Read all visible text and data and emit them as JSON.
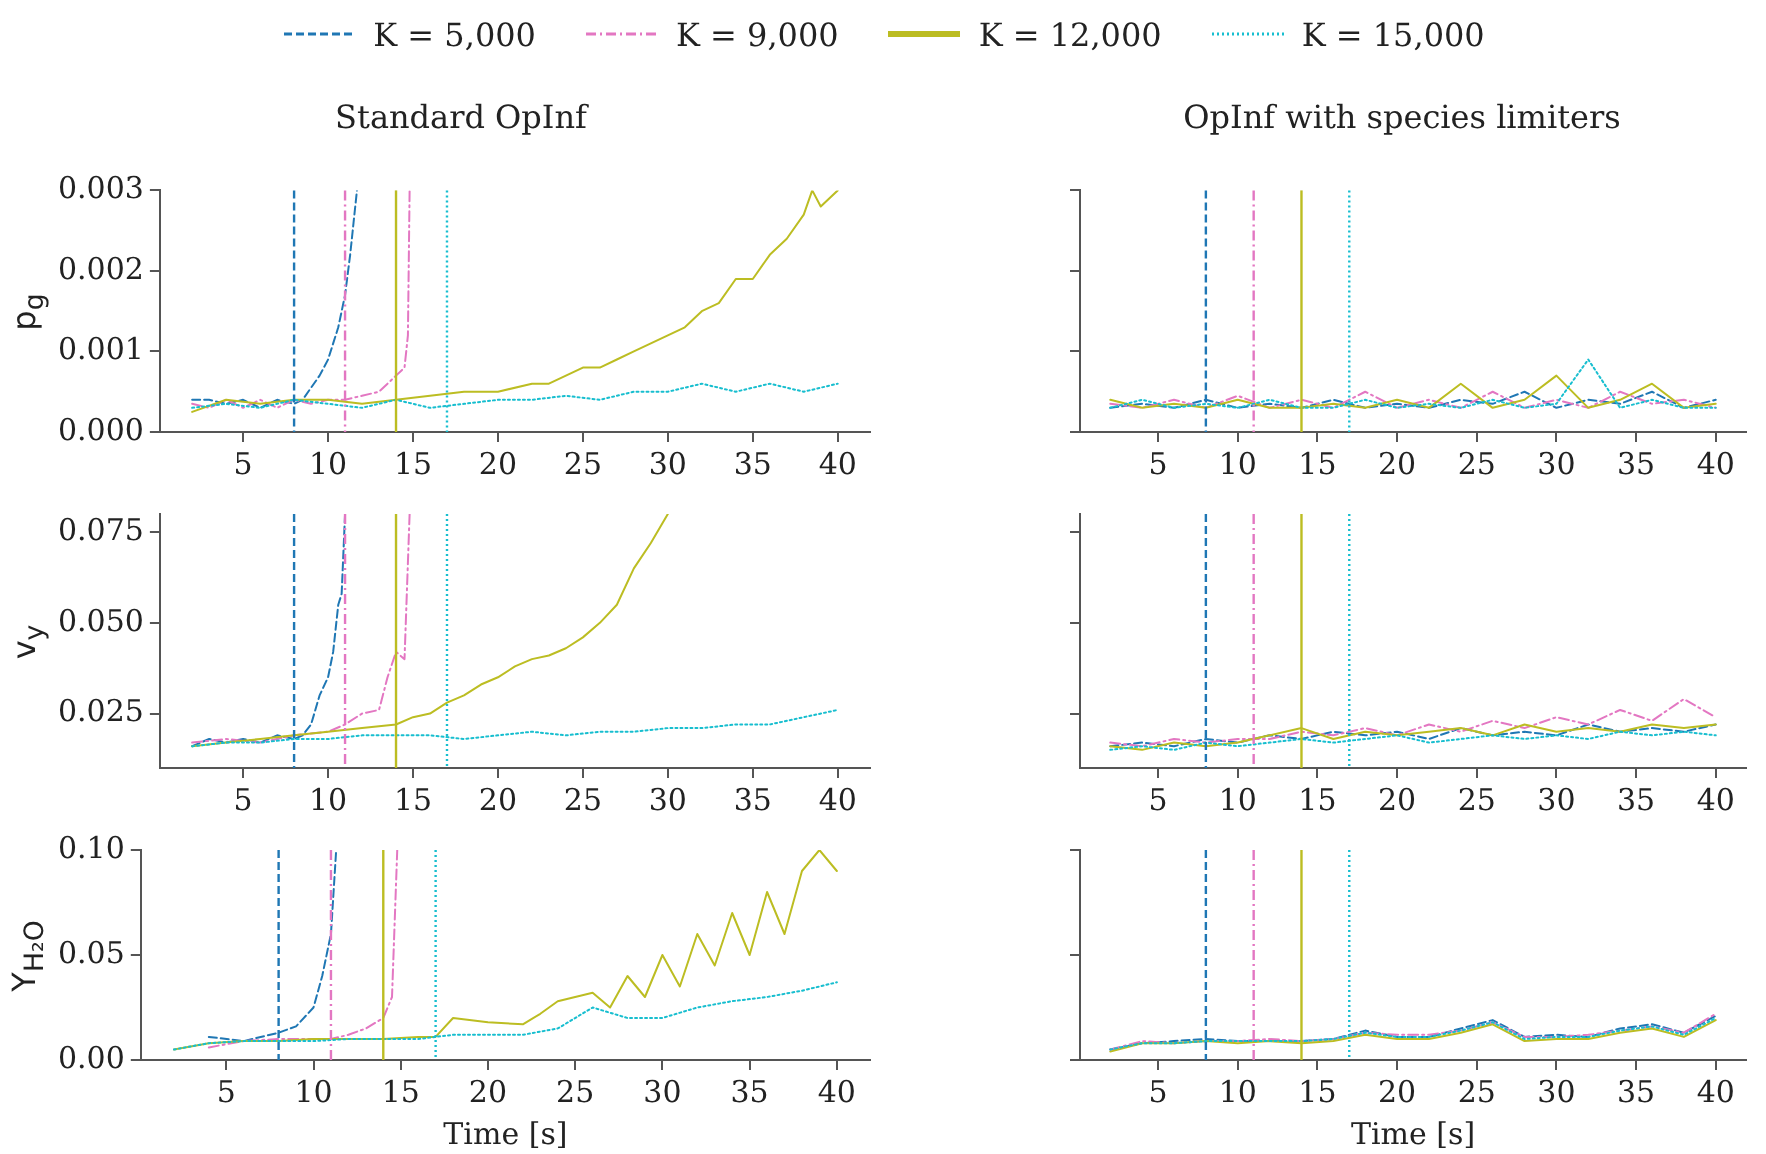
{
  "chart_data": [
    {
      "type": "line",
      "title": "Standard OpInf",
      "ylabel": "p$_{g}$",
      "legend": "top",
      "marker": "none",
      "xlim": [
        0.1,
        41.9
      ],
      "xticks": [
        5,
        10,
        15,
        20,
        25,
        30,
        35,
        40
      ],
      "ylim": [
        0,
        0.003
      ],
      "yticks": [
        {
          "value": 0,
          "label": "0.000"
        },
        {
          "value": 0.001,
          "label": "0.001"
        },
        {
          "value": 0.002,
          "label": "0.002"
        },
        {
          "value": 0.003,
          "label": "0.003"
        }
      ],
      "ref_lines": [
        {
          "axis": "x",
          "value": 8,
          "color": "#1f77b4",
          "line_style": "dashed"
        },
        {
          "axis": "x",
          "value": 11,
          "color": "#e377c2",
          "line_style": "dashdot"
        },
        {
          "axis": "x",
          "value": 14,
          "color": "#bcbd22",
          "line_style": "solid"
        },
        {
          "axis": "x",
          "value": 17,
          "color": "#17becf",
          "line_style": "dotted"
        }
      ],
      "series": [
        {
          "name": "K = 5,000",
          "color": "#1f77b4",
          "line_style": "dashed",
          "x": [
            2,
            3,
            4,
            5,
            6,
            7,
            8,
            8.5,
            9,
            9.5,
            10,
            10.3,
            10.6,
            11,
            11.3,
            11.5,
            11.7
          ],
          "values": [
            0.0004,
            0.0004,
            0.00035,
            0.0004,
            0.0003,
            0.0004,
            0.00035,
            0.0004,
            0.00055,
            0.0007,
            0.0009,
            0.0011,
            0.0013,
            0.0017,
            0.0022,
            0.0026,
            0.003
          ]
        },
        {
          "name": "K = 9,000",
          "color": "#e377c2",
          "line_style": "dashdot",
          "x": [
            2,
            3,
            4,
            5,
            6,
            7,
            8,
            9,
            10,
            11,
            12,
            13,
            13.5,
            14,
            14.5,
            14.7,
            14.8
          ],
          "values": [
            0.00035,
            0.0003,
            0.0004,
            0.0003,
            0.0004,
            0.0003,
            0.0004,
            0.00035,
            0.0004,
            0.0004,
            0.00045,
            0.0005,
            0.0006,
            0.0007,
            0.0008,
            0.0012,
            0.003
          ]
        },
        {
          "name": "K = 12,000",
          "color": "#bcbd22",
          "line_style": "solid",
          "x": [
            2,
            4,
            6,
            8,
            10,
            12,
            14,
            16,
            18,
            20,
            22,
            23,
            24,
            25,
            26,
            27,
            28,
            29,
            30,
            31,
            32,
            33,
            34,
            35,
            36,
            37,
            38,
            38.5,
            39,
            40
          ],
          "values": [
            0.00025,
            0.0004,
            0.00035,
            0.0004,
            0.0004,
            0.00035,
            0.0004,
            0.00045,
            0.0005,
            0.0005,
            0.0006,
            0.0006,
            0.0007,
            0.0008,
            0.0008,
            0.0009,
            0.001,
            0.0011,
            0.0012,
            0.0013,
            0.0015,
            0.0016,
            0.0019,
            0.0019,
            0.0022,
            0.0024,
            0.0027,
            0.003,
            0.0028,
            0.003
          ]
        },
        {
          "name": "K = 15,000",
          "color": "#17becf",
          "line_style": "dotted",
          "x": [
            2,
            4,
            6,
            8,
            10,
            12,
            14,
            16,
            18,
            20,
            22,
            24,
            26,
            28,
            30,
            32,
            34,
            36,
            38,
            40
          ],
          "values": [
            0.0003,
            0.00035,
            0.0003,
            0.0004,
            0.00035,
            0.0003,
            0.0004,
            0.0003,
            0.00035,
            0.0004,
            0.0004,
            0.00045,
            0.0004,
            0.0005,
            0.0005,
            0.0006,
            0.0005,
            0.0006,
            0.0005,
            0.0006
          ]
        }
      ]
    },
    {
      "type": "line",
      "title": "OpInf with species limiters",
      "tick_labels": "x",
      "marker": "none",
      "xlim": [
        0.1,
        41.9
      ],
      "xticks": [
        5,
        10,
        15,
        20,
        25,
        30,
        35,
        40
      ],
      "ylim": [
        0,
        0.003
      ],
      "yticks": [
        {
          "value": 0,
          "label": null
        },
        {
          "value": 0.001,
          "label": null
        },
        {
          "value": 0.002,
          "label": null
        },
        {
          "value": 0.003,
          "label": null
        }
      ],
      "x": [
        2,
        4,
        6,
        8,
        10,
        12,
        14,
        16,
        18,
        20,
        22,
        24,
        26,
        28,
        30,
        32,
        34,
        36,
        38,
        40
      ],
      "ref_lines": [
        {
          "axis": "x",
          "value": 8,
          "color": "#1f77b4",
          "line_style": "dashed"
        },
        {
          "axis": "x",
          "value": 11,
          "color": "#e377c2",
          "line_style": "dashdot"
        },
        {
          "axis": "x",
          "value": 14,
          "color": "#bcbd22",
          "line_style": "solid"
        },
        {
          "axis": "x",
          "value": 17,
          "color": "#17becf",
          "line_style": "dotted"
        }
      ],
      "series": [
        {
          "color": "#1f77b4",
          "line_style": "dashed",
          "values": [
            0.0003,
            0.00035,
            0.0003,
            0.0004,
            0.0003,
            0.00035,
            0.0003,
            0.0004,
            0.0003,
            0.00035,
            0.0003,
            0.0004,
            0.00035,
            0.0005,
            0.0003,
            0.0004,
            0.00035,
            0.0005,
            0.0003,
            0.0004
          ]
        },
        {
          "color": "#e377c2",
          "line_style": "dashdot",
          "values": [
            0.00035,
            0.0003,
            0.0004,
            0.0003,
            0.00045,
            0.0003,
            0.0004,
            0.0003,
            0.0005,
            0.0003,
            0.0004,
            0.0003,
            0.0005,
            0.0003,
            0.0004,
            0.0003,
            0.0005,
            0.00035,
            0.0004,
            0.0003
          ]
        },
        {
          "color": "#bcbd22",
          "line_style": "solid",
          "values": [
            0.0004,
            0.0003,
            0.00035,
            0.0003,
            0.0004,
            0.0003,
            0.0003,
            0.00035,
            0.0003,
            0.0004,
            0.0003,
            0.0006,
            0.0003,
            0.0004,
            0.0007,
            0.0003,
            0.0004,
            0.0006,
            0.0003,
            0.00035
          ]
        },
        {
          "color": "#17becf",
          "line_style": "dotted",
          "values": [
            0.0003,
            0.0004,
            0.0003,
            0.00035,
            0.0003,
            0.0004,
            0.0003,
            0.0003,
            0.0004,
            0.0003,
            0.00035,
            0.0003,
            0.0004,
            0.0003,
            0.00035,
            0.0009,
            0.0003,
            0.0004,
            0.0003,
            0.0003
          ]
        }
      ]
    },
    {
      "type": "line",
      "ylabel": "v$_{y}$",
      "marker": "none",
      "xlim": [
        0.1,
        41.9
      ],
      "xticks": [
        5,
        10,
        15,
        20,
        25,
        30,
        35,
        40
      ],
      "ylim": [
        0.01,
        0.08
      ],
      "yticks": [
        {
          "value": 0.025,
          "label": "0.025"
        },
        {
          "value": 0.05,
          "label": "0.050"
        },
        {
          "value": 0.075,
          "label": "0.075"
        }
      ],
      "ref_lines": [
        {
          "axis": "x",
          "value": 8,
          "color": "#1f77b4",
          "line_style": "dashed"
        },
        {
          "axis": "x",
          "value": 11,
          "color": "#e377c2",
          "line_style": "dashdot"
        },
        {
          "axis": "x",
          "value": 14,
          "color": "#bcbd22",
          "line_style": "solid"
        },
        {
          "axis": "x",
          "value": 17,
          "color": "#17becf",
          "line_style": "dotted"
        }
      ],
      "series": [
        {
          "color": "#1f77b4",
          "line_style": "dashed",
          "x": [
            2,
            3,
            4,
            5,
            6,
            7,
            8,
            8.5,
            9,
            9.5,
            10,
            10.3,
            10.6,
            10.8,
            11
          ],
          "values": [
            0.016,
            0.018,
            0.017,
            0.018,
            0.017,
            0.019,
            0.018,
            0.019,
            0.022,
            0.03,
            0.035,
            0.042,
            0.055,
            0.058,
            0.08
          ]
        },
        {
          "color": "#e377c2",
          "line_style": "dashdot",
          "x": [
            2,
            4,
            6,
            8,
            10,
            11,
            12,
            13,
            13.5,
            14,
            14.5,
            14.8
          ],
          "values": [
            0.017,
            0.018,
            0.017,
            0.019,
            0.02,
            0.022,
            0.025,
            0.026,
            0.035,
            0.042,
            0.04,
            0.08
          ]
        },
        {
          "color": "#bcbd22",
          "line_style": "solid",
          "x": [
            2,
            4,
            6,
            8,
            10,
            12,
            14,
            15,
            16,
            17,
            18,
            19,
            20,
            21,
            22,
            23,
            24,
            25,
            26,
            27,
            28,
            29,
            30
          ],
          "values": [
            0.016,
            0.017,
            0.018,
            0.019,
            0.02,
            0.021,
            0.022,
            0.024,
            0.025,
            0.028,
            0.03,
            0.033,
            0.035,
            0.038,
            0.04,
            0.041,
            0.043,
            0.046,
            0.05,
            0.055,
            0.065,
            0.072,
            0.08
          ]
        },
        {
          "color": "#17becf",
          "line_style": "dotted",
          "x": [
            2,
            4,
            6,
            8,
            10,
            12,
            14,
            16,
            18,
            20,
            22,
            24,
            26,
            28,
            30,
            32,
            34,
            36,
            38,
            40
          ],
          "values": [
            0.016,
            0.017,
            0.017,
            0.018,
            0.018,
            0.019,
            0.019,
            0.019,
            0.018,
            0.019,
            0.02,
            0.019,
            0.02,
            0.02,
            0.021,
            0.021,
            0.022,
            0.022,
            0.024,
            0.026
          ]
        }
      ]
    },
    {
      "type": "line",
      "tick_labels": "x",
      "marker": "none",
      "xlim": [
        0.1,
        41.9
      ],
      "xticks": [
        5,
        10,
        15,
        20,
        25,
        30,
        35,
        40
      ],
      "ylim": [
        0.01,
        0.08
      ],
      "yticks": [
        {
          "value": 0.025,
          "label": null
        },
        {
          "value": 0.05,
          "label": null
        },
        {
          "value": 0.075,
          "label": null
        }
      ],
      "x": [
        2,
        4,
        6,
        8,
        10,
        12,
        14,
        16,
        18,
        20,
        22,
        24,
        26,
        28,
        30,
        32,
        34,
        36,
        38,
        40
      ],
      "ref_lines": [
        {
          "axis": "x",
          "value": 8,
          "color": "#1f77b4",
          "line_style": "dashed"
        },
        {
          "axis": "x",
          "value": 11,
          "color": "#e377c2",
          "line_style": "dashdot"
        },
        {
          "axis": "x",
          "value": 14,
          "color": "#bcbd22",
          "line_style": "solid"
        },
        {
          "axis": "x",
          "value": 17,
          "color": "#17becf",
          "line_style": "dotted"
        }
      ],
      "series": [
        {
          "color": "#1f77b4",
          "line_style": "dashed",
          "values": [
            0.016,
            0.017,
            0.016,
            0.018,
            0.017,
            0.019,
            0.018,
            0.02,
            0.019,
            0.02,
            0.018,
            0.021,
            0.019,
            0.02,
            0.019,
            0.022,
            0.02,
            0.021,
            0.02,
            0.022
          ]
        },
        {
          "color": "#e377c2",
          "line_style": "dashdot",
          "values": [
            0.017,
            0.016,
            0.018,
            0.017,
            0.018,
            0.018,
            0.02,
            0.019,
            0.021,
            0.019,
            0.022,
            0.02,
            0.023,
            0.021,
            0.024,
            0.022,
            0.026,
            0.023,
            0.029,
            0.024
          ]
        },
        {
          "color": "#bcbd22",
          "line_style": "solid",
          "values": [
            0.016,
            0.015,
            0.017,
            0.016,
            0.017,
            0.019,
            0.021,
            0.018,
            0.02,
            0.019,
            0.02,
            0.021,
            0.019,
            0.022,
            0.02,
            0.021,
            0.02,
            0.022,
            0.021,
            0.022
          ]
        },
        {
          "color": "#17becf",
          "line_style": "dotted",
          "values": [
            0.015,
            0.016,
            0.015,
            0.017,
            0.016,
            0.017,
            0.018,
            0.017,
            0.018,
            0.019,
            0.017,
            0.018,
            0.019,
            0.018,
            0.019,
            0.018,
            0.02,
            0.019,
            0.02,
            0.019
          ]
        }
      ]
    },
    {
      "type": "line",
      "ylabel": "Y$_{H₂O}$",
      "xlabel": "Time [s]",
      "marker": "none",
      "xlim": [
        0.1,
        41.9
      ],
      "xticks": [
        5,
        10,
        15,
        20,
        25,
        30,
        35,
        40
      ],
      "ylim": [
        0,
        0.1
      ],
      "yticks": [
        {
          "value": 0,
          "label": "0.00"
        },
        {
          "value": 0.05,
          "label": "0.05"
        },
        {
          "value": 0.1,
          "label": "0.10"
        }
      ],
      "ref_lines": [
        {
          "axis": "x",
          "value": 8,
          "color": "#1f77b4",
          "line_style": "dashed"
        },
        {
          "axis": "x",
          "value": 11,
          "color": "#e377c2",
          "line_style": "dashdot"
        },
        {
          "axis": "x",
          "value": 14,
          "color": "#bcbd22",
          "line_style": "solid"
        },
        {
          "axis": "x",
          "value": 17,
          "color": "#17becf",
          "line_style": "dotted"
        }
      ],
      "series": [
        {
          "color": "#1f77b4",
          "line_style": "dashed",
          "x": [
            4,
            6,
            8,
            9,
            10,
            10.5,
            11,
            11.3
          ],
          "values": [
            0.011,
            0.009,
            0.013,
            0.016,
            0.025,
            0.04,
            0.06,
            0.1
          ]
        },
        {
          "color": "#e377c2",
          "line_style": "dashdot",
          "x": [
            4,
            6,
            8,
            10,
            11,
            12,
            13,
            14,
            14.5,
            14.8
          ],
          "values": [
            0.006,
            0.009,
            0.01,
            0.01,
            0.01,
            0.012,
            0.015,
            0.02,
            0.03,
            0.1
          ]
        },
        {
          "color": "#bcbd22",
          "line_style": "solid",
          "x": [
            2,
            4,
            6,
            8,
            10,
            12,
            14,
            16,
            17,
            18,
            20,
            22,
            23,
            24,
            25,
            26,
            27,
            28,
            29,
            30,
            31,
            32,
            33,
            34,
            35,
            36,
            37,
            38,
            39,
            40
          ],
          "values": [
            0.005,
            0.008,
            0.009,
            0.009,
            0.01,
            0.01,
            0.01,
            0.011,
            0.011,
            0.02,
            0.018,
            0.017,
            0.022,
            0.028,
            0.03,
            0.032,
            0.025,
            0.04,
            0.03,
            0.05,
            0.035,
            0.06,
            0.045,
            0.07,
            0.05,
            0.08,
            0.06,
            0.09,
            0.1,
            0.09
          ]
        },
        {
          "color": "#17becf",
          "line_style": "dotted",
          "x": [
            2,
            4,
            6,
            8,
            10,
            12,
            14,
            16,
            18,
            20,
            22,
            24,
            26,
            28,
            30,
            32,
            34,
            36,
            38,
            40
          ],
          "values": [
            0.005,
            0.008,
            0.009,
            0.009,
            0.009,
            0.01,
            0.01,
            0.01,
            0.012,
            0.012,
            0.012,
            0.015,
            0.025,
            0.02,
            0.02,
            0.025,
            0.028,
            0.03,
            0.033,
            0.037
          ]
        }
      ]
    },
    {
      "type": "line",
      "xlabel": "Time [s]",
      "tick_labels": "x",
      "marker": "none",
      "xlim": [
        0.1,
        41.9
      ],
      "xticks": [
        5,
        10,
        15,
        20,
        25,
        30,
        35,
        40
      ],
      "ylim": [
        0,
        0.1
      ],
      "yticks": [
        {
          "value": 0,
          "label": null
        },
        {
          "value": 0.05,
          "label": null
        },
        {
          "value": 0.1,
          "label": null
        }
      ],
      "x": [
        2,
        4,
        6,
        8,
        10,
        12,
        14,
        16,
        18,
        20,
        22,
        24,
        26,
        28,
        30,
        32,
        34,
        36,
        38,
        40
      ],
      "ref_lines": [
        {
          "axis": "x",
          "value": 8,
          "color": "#1f77b4",
          "line_style": "dashed"
        },
        {
          "axis": "x",
          "value": 11,
          "color": "#e377c2",
          "line_style": "dashdot"
        },
        {
          "axis": "x",
          "value": 14,
          "color": "#bcbd22",
          "line_style": "solid"
        },
        {
          "axis": "x",
          "value": 17,
          "color": "#17becf",
          "line_style": "dotted"
        }
      ],
      "series": [
        {
          "color": "#1f77b4",
          "line_style": "dashed",
          "values": [
            0.005,
            0.008,
            0.009,
            0.01,
            0.009,
            0.009,
            0.009,
            0.01,
            0.014,
            0.011,
            0.011,
            0.015,
            0.019,
            0.011,
            0.012,
            0.011,
            0.015,
            0.017,
            0.013,
            0.021
          ]
        },
        {
          "color": "#e377c2",
          "line_style": "dashdot",
          "values": [
            0.005,
            0.009,
            0.008,
            0.009,
            0.009,
            0.01,
            0.009,
            0.01,
            0.013,
            0.012,
            0.012,
            0.014,
            0.018,
            0.011,
            0.011,
            0.012,
            0.014,
            0.016,
            0.013,
            0.022
          ]
        },
        {
          "color": "#bcbd22",
          "line_style": "solid",
          "values": [
            0.004,
            0.008,
            0.008,
            0.009,
            0.008,
            0.009,
            0.008,
            0.009,
            0.012,
            0.01,
            0.01,
            0.013,
            0.017,
            0.009,
            0.01,
            0.01,
            0.013,
            0.015,
            0.011,
            0.019
          ]
        },
        {
          "color": "#17becf",
          "line_style": "dotted",
          "values": [
            0.005,
            0.008,
            0.008,
            0.009,
            0.009,
            0.009,
            0.009,
            0.01,
            0.013,
            0.011,
            0.011,
            0.014,
            0.018,
            0.01,
            0.011,
            0.011,
            0.014,
            0.016,
            0.012,
            0.02
          ]
        }
      ]
    }
  ]
}
